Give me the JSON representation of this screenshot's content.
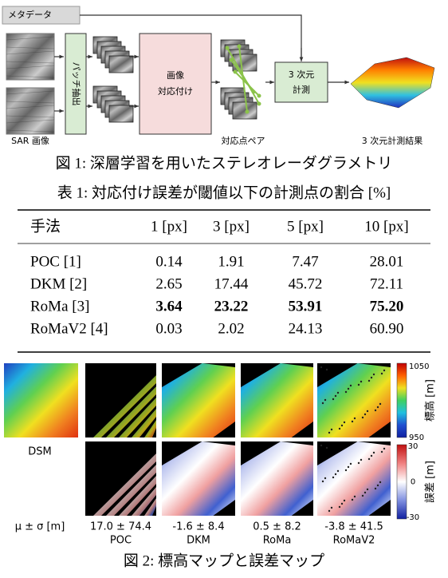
{
  "figure1": {
    "meta_label": "メタデータ",
    "sar_label": "SAR 画像",
    "patch_label": "パッチ抽出",
    "match_label": [
      "画像",
      "対応付け"
    ],
    "pair_label": "対応点ペア",
    "measure_label": [
      "3 次元",
      "計測"
    ],
    "result_label": "3 次元計測結果",
    "caption": "図 1: 深層学習を用いたステレオレーダグラメトリ"
  },
  "table": {
    "caption": "表 1: 対応付け誤差が閾値以下の計測点の割合 [%]",
    "header": [
      "手法",
      "1 [px]",
      "3 [px]",
      "5 [px]",
      "10 [px]"
    ],
    "rows": [
      [
        "POC [1]",
        "0.14",
        "1.91",
        "7.47",
        "28.01"
      ],
      [
        "DKM [2]",
        "2.65",
        "17.44",
        "45.72",
        "72.11"
      ],
      [
        "RoMa [3]",
        "3.64",
        "23.22",
        "53.91",
        "75.20"
      ],
      [
        "RoMaV2 [4]",
        "0.03",
        "2.02",
        "24.13",
        "60.90"
      ]
    ],
    "bold_row": 2
  },
  "figure2": {
    "dsm_label": "DSM",
    "methods": [
      "POC",
      "DKM",
      "RoMa",
      "RoMaV2"
    ],
    "stats_label": "μ ± σ [m]",
    "stats": [
      "17.0 ± 74.4",
      "-1.6 ± 8.4",
      "0.5 ± 8.2",
      "-3.8 ± 41.5"
    ],
    "elev_colorbar": {
      "label": "標高 [m]",
      "max": "1050",
      "min": "950"
    },
    "err_colorbar": {
      "label": "誤差 [m]",
      "ticks": [
        "30",
        "0",
        "-30"
      ]
    },
    "caption": "図 2: 標高マップと誤差マップ"
  }
}
